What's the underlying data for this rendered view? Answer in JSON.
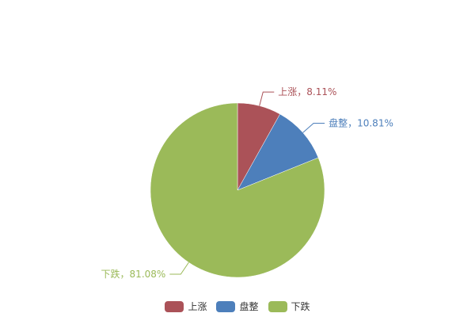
{
  "chart_data": {
    "type": "pie",
    "title": "",
    "series": [
      {
        "name": "上涨",
        "value": 8.11,
        "label": "上涨，8.11%",
        "color": "#ab5258"
      },
      {
        "name": "盘整",
        "value": 10.81,
        "label": "盘整，10.81%",
        "color": "#4d7fbb"
      },
      {
        "name": "下跌",
        "value": 81.08,
        "label": "下跌，81.08%",
        "color": "#9bba59"
      }
    ],
    "start_angle": "12 o'clock, clockwise",
    "legend_position": "bottom-center"
  }
}
